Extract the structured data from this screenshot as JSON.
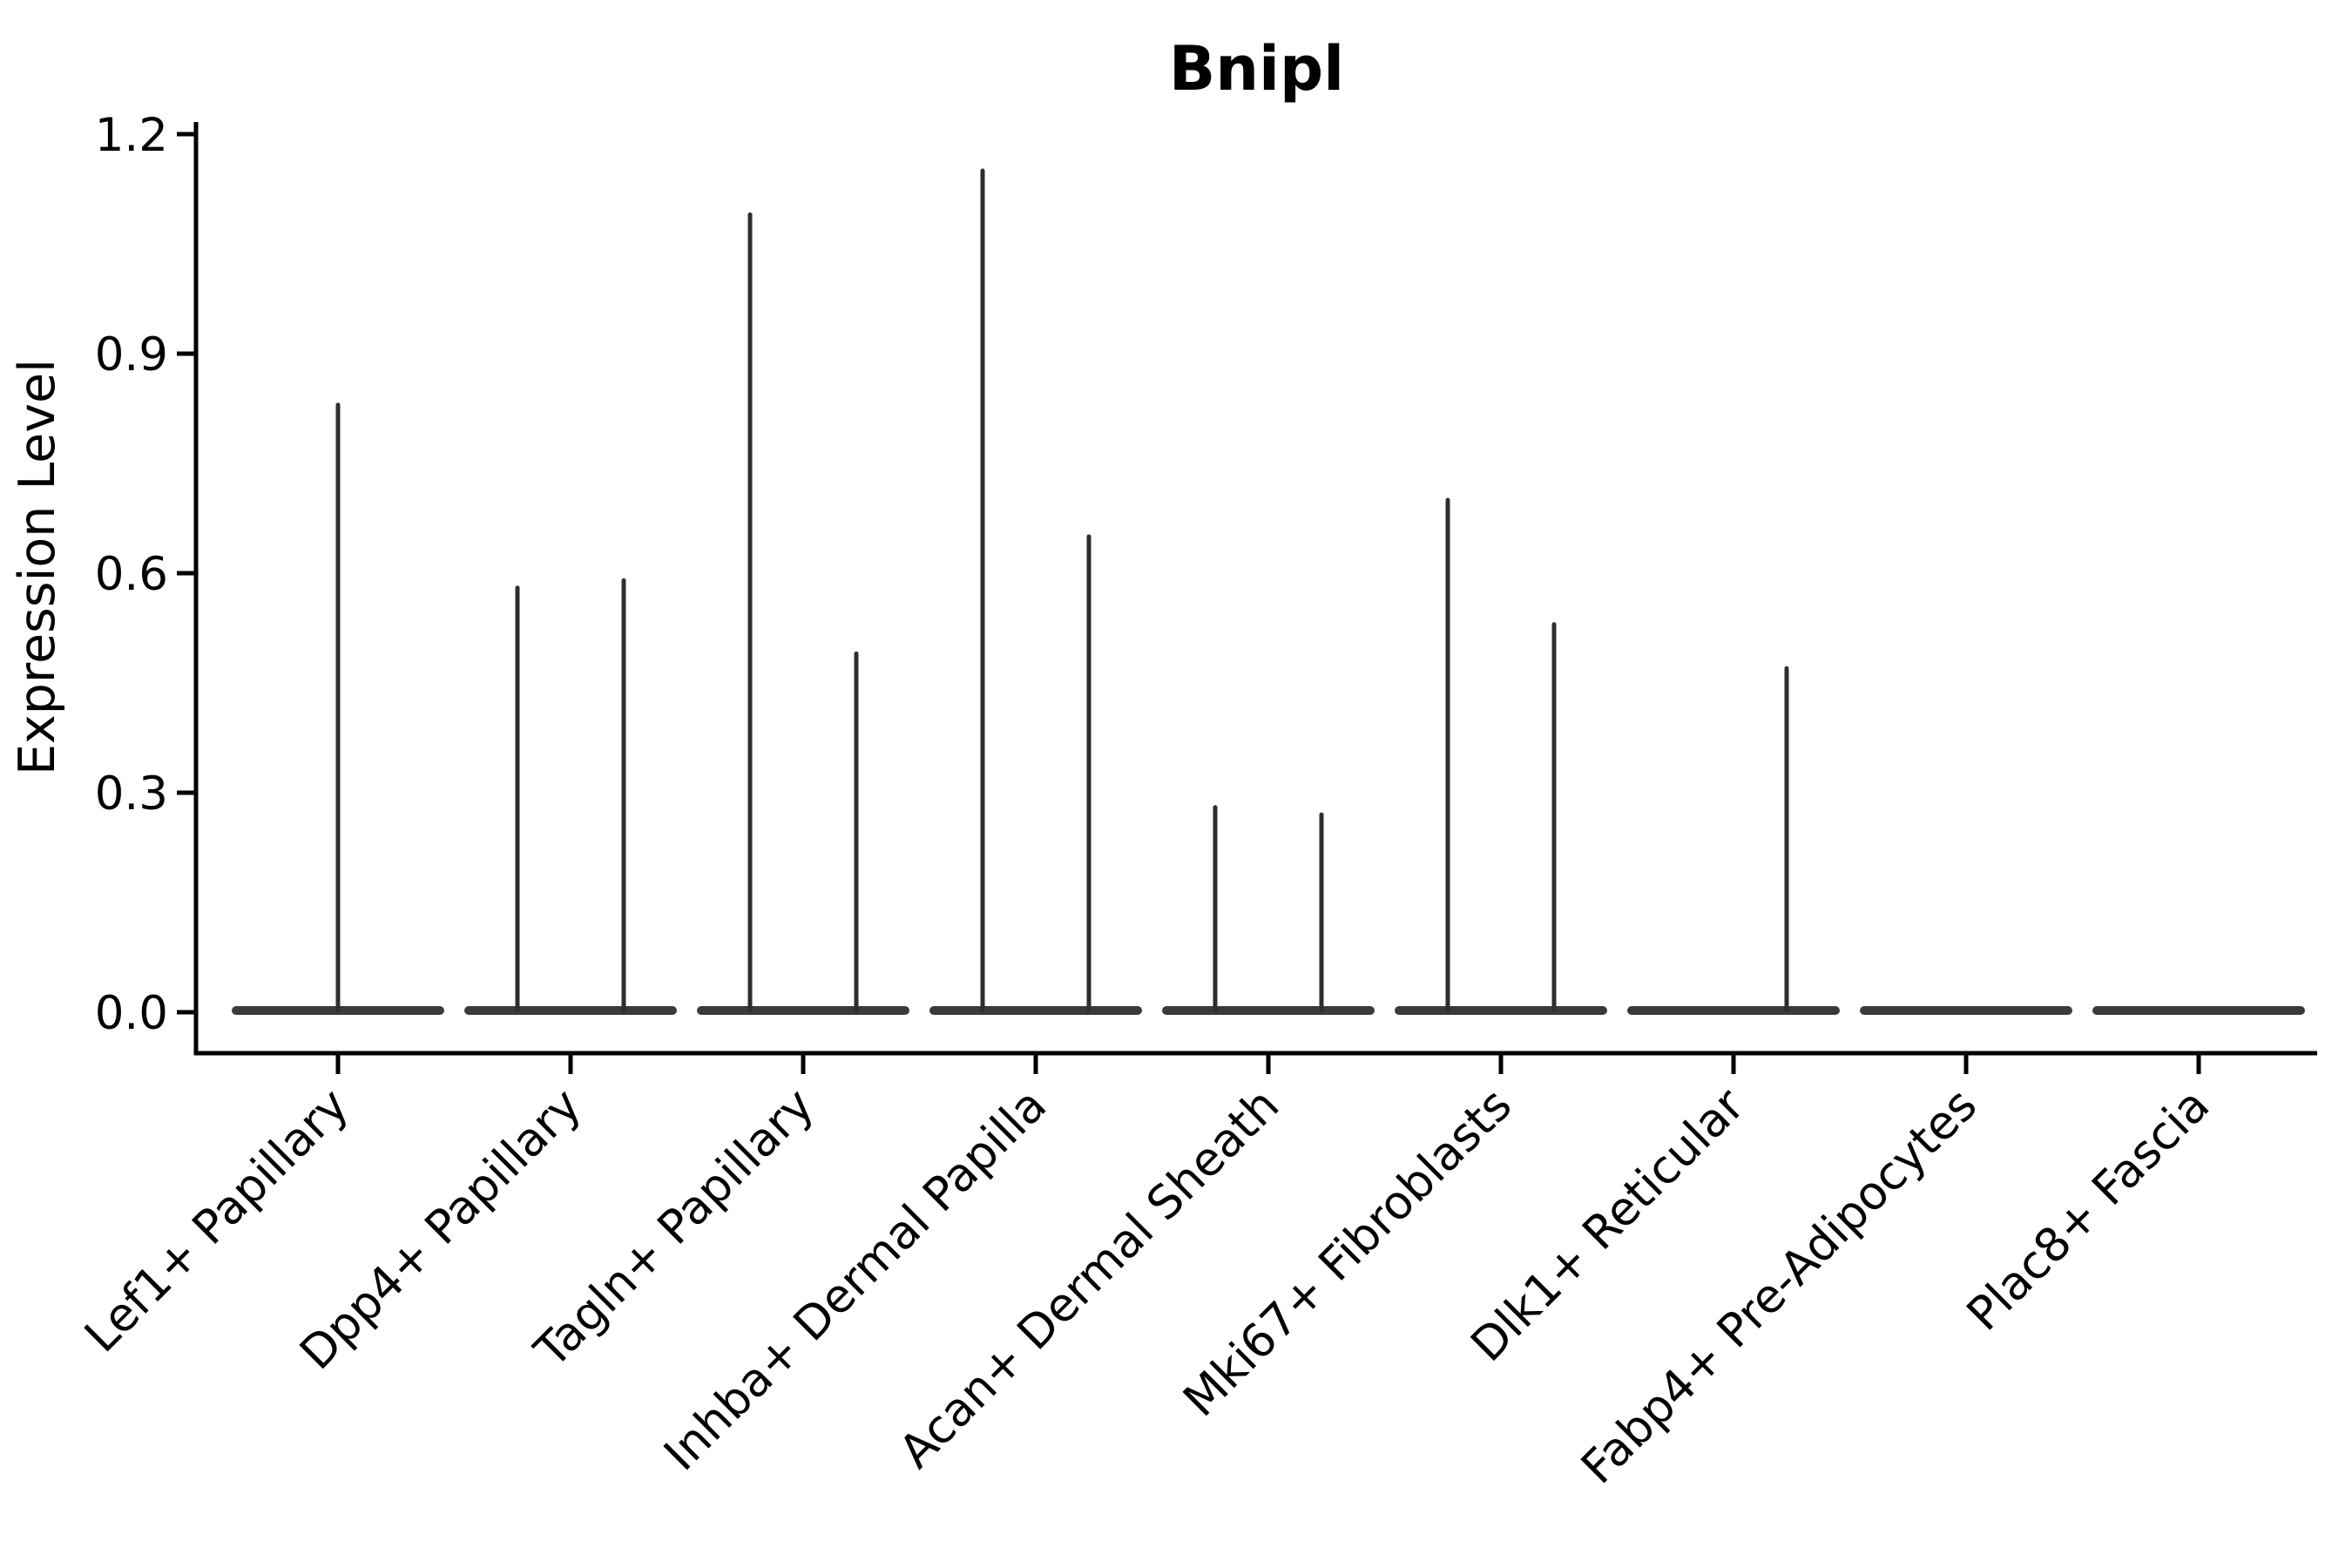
{
  "chart_data": {
    "type": "violin",
    "title": "Bnipl",
    "ylabel": "Expression Level",
    "yticks": [
      0.0,
      0.3,
      0.6,
      0.9,
      1.2
    ],
    "yticklabels": [
      "0.0",
      "0.3",
      "0.6",
      "0.9",
      "1.2"
    ],
    "ylim": [
      -0.056,
      1.217
    ],
    "grid": false,
    "legend": null,
    "xtick_rotation": 45,
    "colors": {
      "ink": "#000000",
      "violin_fill": "#3a3a3a",
      "spike": "#2e2e2e",
      "background": "#ffffff"
    },
    "categories": [
      "Lef1+ Papillary",
      "Dpp4+ Papillary",
      "Tagln+ Papillary",
      "Inhba+ Dermal Papilla",
      "Acan+ Dermal Sheath",
      "Mki67+ Fibroblasts",
      "Dlk1+ Reticular",
      "Fabp4+ Pre-Adipocytes",
      "Plac8+ Fascia"
    ],
    "series": [
      {
        "category": "Lef1+ Papillary",
        "spikes": [
          {
            "position": "center",
            "max_expression": 0.83
          }
        ]
      },
      {
        "category": "Dpp4+ Papillary",
        "spikes": [
          {
            "position": "left",
            "max_expression": 0.58
          },
          {
            "position": "right",
            "max_expression": 0.59
          }
        ]
      },
      {
        "category": "Tagln+ Papillary",
        "spikes": [
          {
            "position": "left",
            "max_expression": 1.09
          },
          {
            "position": "right",
            "max_expression": 0.49
          }
        ]
      },
      {
        "category": "Inhba+ Dermal Papilla",
        "spikes": [
          {
            "position": "left",
            "max_expression": 1.15
          },
          {
            "position": "right",
            "max_expression": 0.65
          }
        ]
      },
      {
        "category": "Acan+ Dermal Sheath",
        "spikes": [
          {
            "position": "left",
            "max_expression": 0.28
          },
          {
            "position": "right",
            "max_expression": 0.27
          }
        ]
      },
      {
        "category": "Mki67+ Fibroblasts",
        "spikes": [
          {
            "position": "left",
            "max_expression": 0.7
          },
          {
            "position": "right",
            "max_expression": 0.53
          }
        ]
      },
      {
        "category": "Dlk1+ Reticular",
        "spikes": [
          {
            "position": "right",
            "max_expression": 0.47
          }
        ]
      },
      {
        "category": "Fabp4+ Pre-Adipocytes",
        "spikes": []
      },
      {
        "category": "Plac8+ Fascia",
        "spikes": []
      }
    ]
  }
}
